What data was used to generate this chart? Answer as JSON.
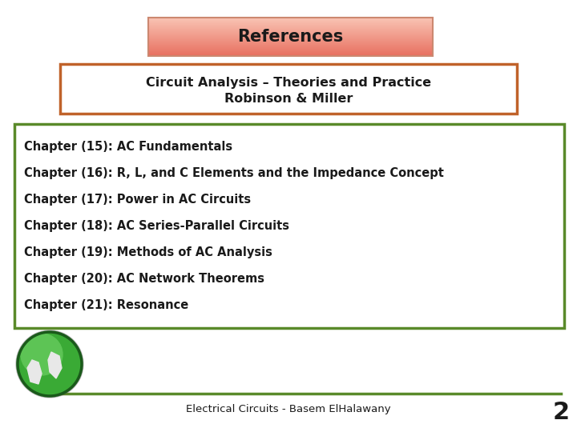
{
  "title": "References",
  "title_box_color_top": "#f9c4b4",
  "title_box_color_bottom": "#e87060",
  "title_box_border": "#cc8870",
  "subtitle_line1": "Circuit Analysis – Theories and Practice",
  "subtitle_line2": "Robinson & Miller",
  "subtitle_box_border": "#c0622a",
  "chapters": [
    "Chapter (15): AC Fundamentals",
    "Chapter (16): R, L, and C Elements and the Impedance Concept",
    "Chapter (17): Power in AC Circuits",
    "Chapter (18): AC Series-Parallel Circuits",
    "Chapter (19): Methods of AC Analysis",
    "Chapter (20): AC Network Theorems",
    "Chapter (21): Resonance"
  ],
  "chapters_box_border": "#5a8a2a",
  "footer_text": "Electrical Circuits - Basem ElHalawany",
  "footer_line_color": "#5a8a2a",
  "page_number": "2",
  "background_color": "#ffffff",
  "text_color": "#1a1a1a"
}
